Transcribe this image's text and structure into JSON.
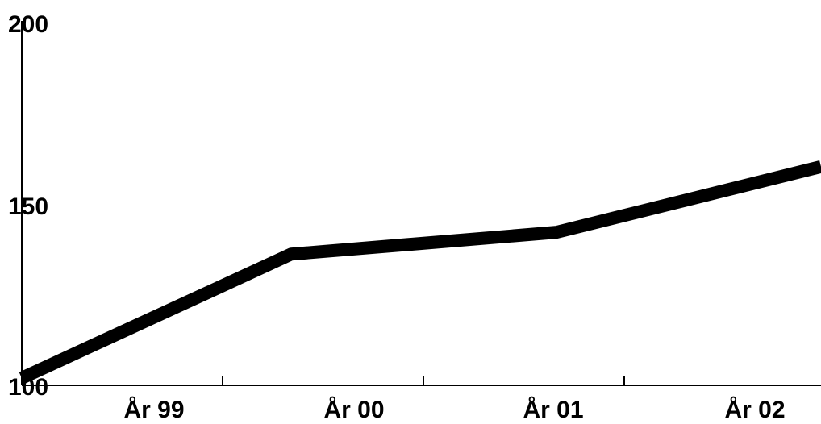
{
  "chart_data": {
    "type": "line",
    "title": "",
    "xlabel": "",
    "ylabel": "",
    "ylim": [
      100,
      200
    ],
    "y_ticks": [
      "100",
      "150",
      "200"
    ],
    "x_tick_labels": [
      "År 99",
      "År 00",
      "År 01",
      "År 02"
    ],
    "x": [
      "start",
      "År 99/År 00",
      "År 00/År 01",
      "end"
    ],
    "series": [
      {
        "values": [
          102,
          136,
          142,
          160
        ]
      }
    ],
    "grid": false,
    "legend": "none",
    "line_color": "#000000"
  }
}
